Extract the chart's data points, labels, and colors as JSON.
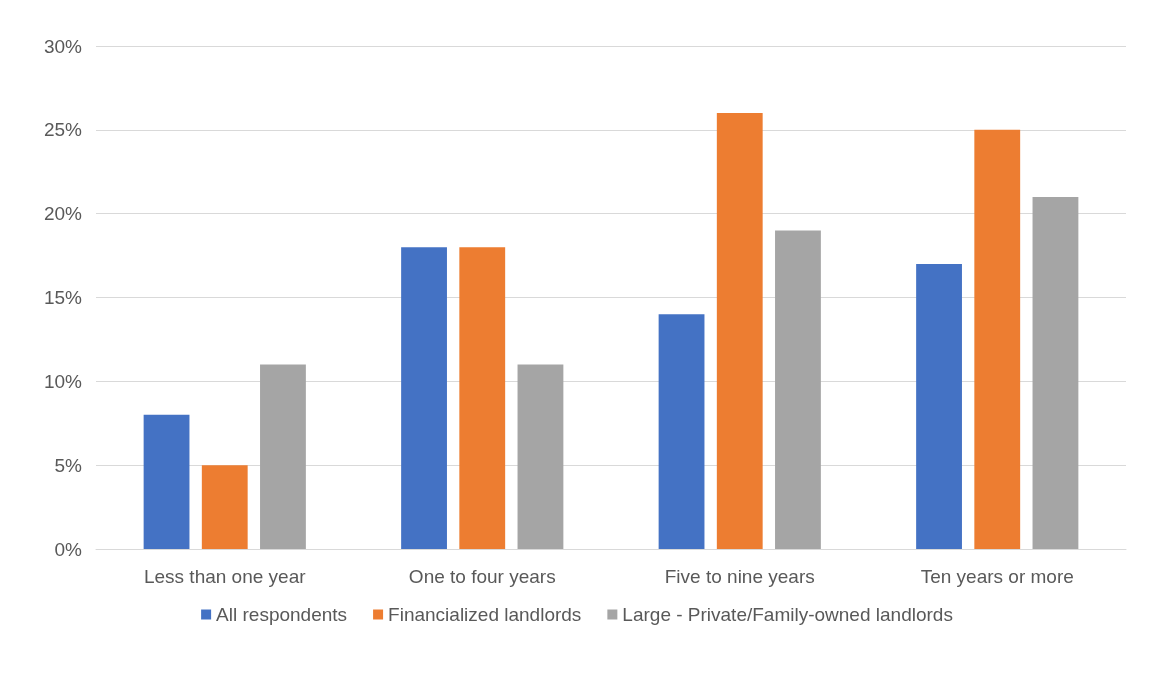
{
  "chart_data": {
    "type": "bar",
    "categories": [
      "Less than one year",
      "One to four years",
      "Five to nine years",
      "Ten years or more"
    ],
    "series": [
      {
        "name": "All respondents",
        "color": "#4472c4",
        "values": [
          8,
          18,
          14,
          17
        ]
      },
      {
        "name": "Financialized landlords",
        "color": "#ed7d31",
        "values": [
          5,
          18,
          26,
          25
        ]
      },
      {
        "name": "Large - Private/Family-owned landlords",
        "color": "#a5a5a5",
        "values": [
          11,
          11,
          19,
          21
        ]
      }
    ],
    "ylim": [
      0,
      30
    ],
    "yticks": [
      {
        "value": 0,
        "label": "0%"
      },
      {
        "value": 5,
        "label": "5%"
      },
      {
        "value": 10,
        "label": "10%"
      },
      {
        "value": 15,
        "label": "15%"
      },
      {
        "value": 20,
        "label": "20%"
      },
      {
        "value": 25,
        "label": "25%"
      },
      {
        "value": 30,
        "label": "30%"
      }
    ],
    "grid": "y",
    "legend": "bottom"
  }
}
